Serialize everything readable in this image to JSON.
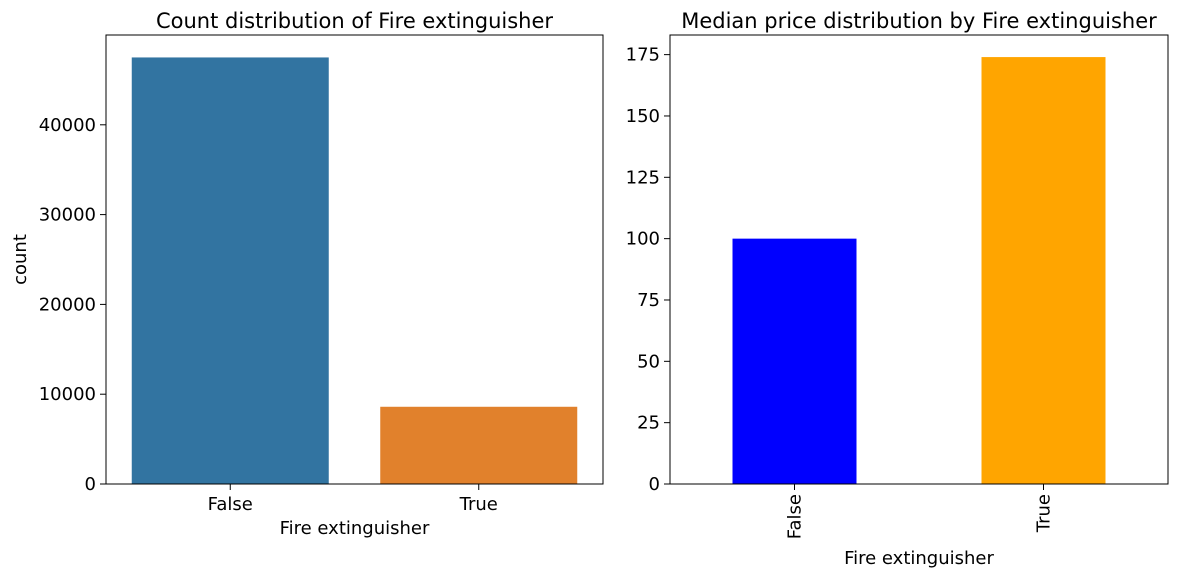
{
  "chart_data": [
    {
      "type": "bar",
      "title": "Count distribution of Fire extinguisher",
      "xlabel": "Fire extinguisher",
      "ylabel": "count",
      "categories": [
        "False",
        "True"
      ],
      "values": [
        47500,
        8600
      ],
      "colors": [
        "#3274a1",
        "#e1812c"
      ],
      "ylim": [
        0,
        50000
      ],
      "yticks": [
        0,
        10000,
        20000,
        30000,
        40000
      ],
      "ytick_labels": [
        "0",
        "10000",
        "20000",
        "30000",
        "40000"
      ],
      "grid": false,
      "xtick_rotation": "horizontal"
    },
    {
      "type": "bar",
      "title": "Median price distribution by Fire extinguisher",
      "xlabel": "Fire extinguisher",
      "ylabel": "",
      "categories": [
        "False",
        "True"
      ],
      "values": [
        100,
        174
      ],
      "colors": [
        "#0000ff",
        "#ffa500"
      ],
      "ylim": [
        0,
        183
      ],
      "yticks": [
        0,
        25,
        50,
        75,
        100,
        125,
        150,
        175
      ],
      "ytick_labels": [
        "0",
        "25",
        "50",
        "75",
        "100",
        "125",
        "150",
        "175"
      ],
      "grid": false,
      "xtick_rotation": "vertical"
    }
  ]
}
